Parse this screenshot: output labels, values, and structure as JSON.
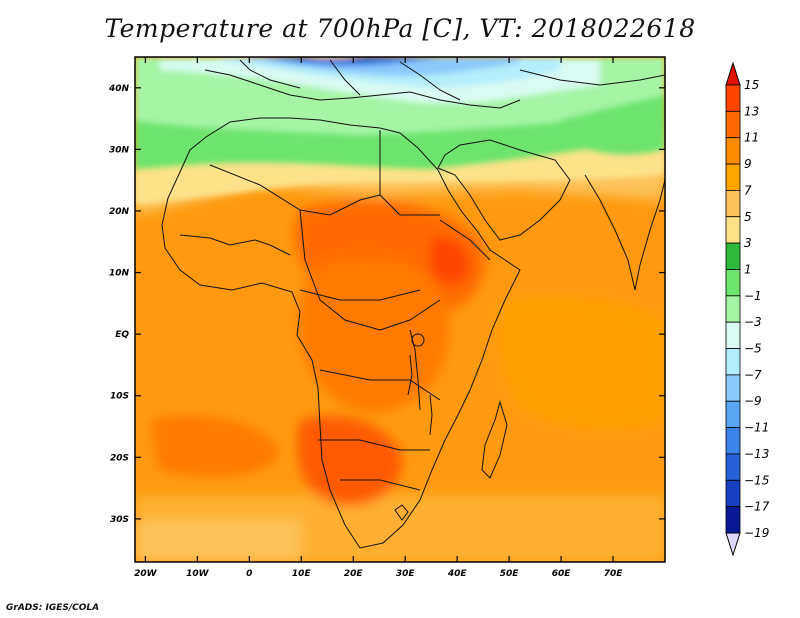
{
  "title": "Temperature at 700hPa [C], VT: 2018022618",
  "credit": "GrADS: IGES/COLA",
  "map": {
    "lat_labels": [
      {
        "lat": 40,
        "label": "40N"
      },
      {
        "lat": 30,
        "label": "30N"
      },
      {
        "lat": 20,
        "label": "20N"
      },
      {
        "lat": 10,
        "label": "10N"
      },
      {
        "lat": 0,
        "label": "EQ"
      },
      {
        "lat": -10,
        "label": "10S"
      },
      {
        "lat": -20,
        "label": "20S"
      },
      {
        "lat": -30,
        "label": "30S"
      }
    ],
    "lon_labels": [
      {
        "lon": -20,
        "label": "20W"
      },
      {
        "lon": -10,
        "label": "10W"
      },
      {
        "lon": 0,
        "label": "0"
      },
      {
        "lon": 10,
        "label": "10E"
      },
      {
        "lon": 20,
        "label": "20E"
      },
      {
        "lon": 30,
        "label": "30E"
      },
      {
        "lon": 40,
        "label": "40E"
      },
      {
        "lon": 50,
        "label": "50E"
      },
      {
        "lon": 60,
        "label": "60E"
      },
      {
        "lon": 70,
        "label": "70E"
      }
    ],
    "lon_range": [
      -22,
      80
    ],
    "lat_range": [
      -37,
      45
    ]
  },
  "colorbar": {
    "levels": [
      {
        "label": "15",
        "color": "#ffa000"
      },
      {
        "label": "13",
        "color": "#ff4500"
      },
      {
        "label": "11",
        "color": "#ff6a00"
      },
      {
        "label": "9",
        "color": "#ff8c00"
      },
      {
        "label": "7",
        "color": "#ffa500"
      },
      {
        "label": "5",
        "color": "#fdc35a"
      },
      {
        "label": "3",
        "color": "#fde28a"
      },
      {
        "label": "1",
        "color": "#2dba3a"
      },
      {
        "label": "−1",
        "color": "#6ee46e"
      },
      {
        "label": "−3",
        "color": "#a5f5a5"
      },
      {
        "label": "−5",
        "color": "#d9fbf3"
      },
      {
        "label": "−7",
        "color": "#b4eefa"
      },
      {
        "label": "−9",
        "color": "#8cc9fb"
      },
      {
        "label": "−11",
        "color": "#5aa6f5"
      },
      {
        "label": "−13",
        "color": "#3d84ea"
      },
      {
        "label": "−15",
        "color": "#2860d8"
      },
      {
        "label": "−17",
        "color": "#1840c0"
      },
      {
        "label": "−19",
        "color": "#0a1a96"
      }
    ],
    "top_color": "#e01000",
    "bottom_color": "#e0d8ff"
  }
}
